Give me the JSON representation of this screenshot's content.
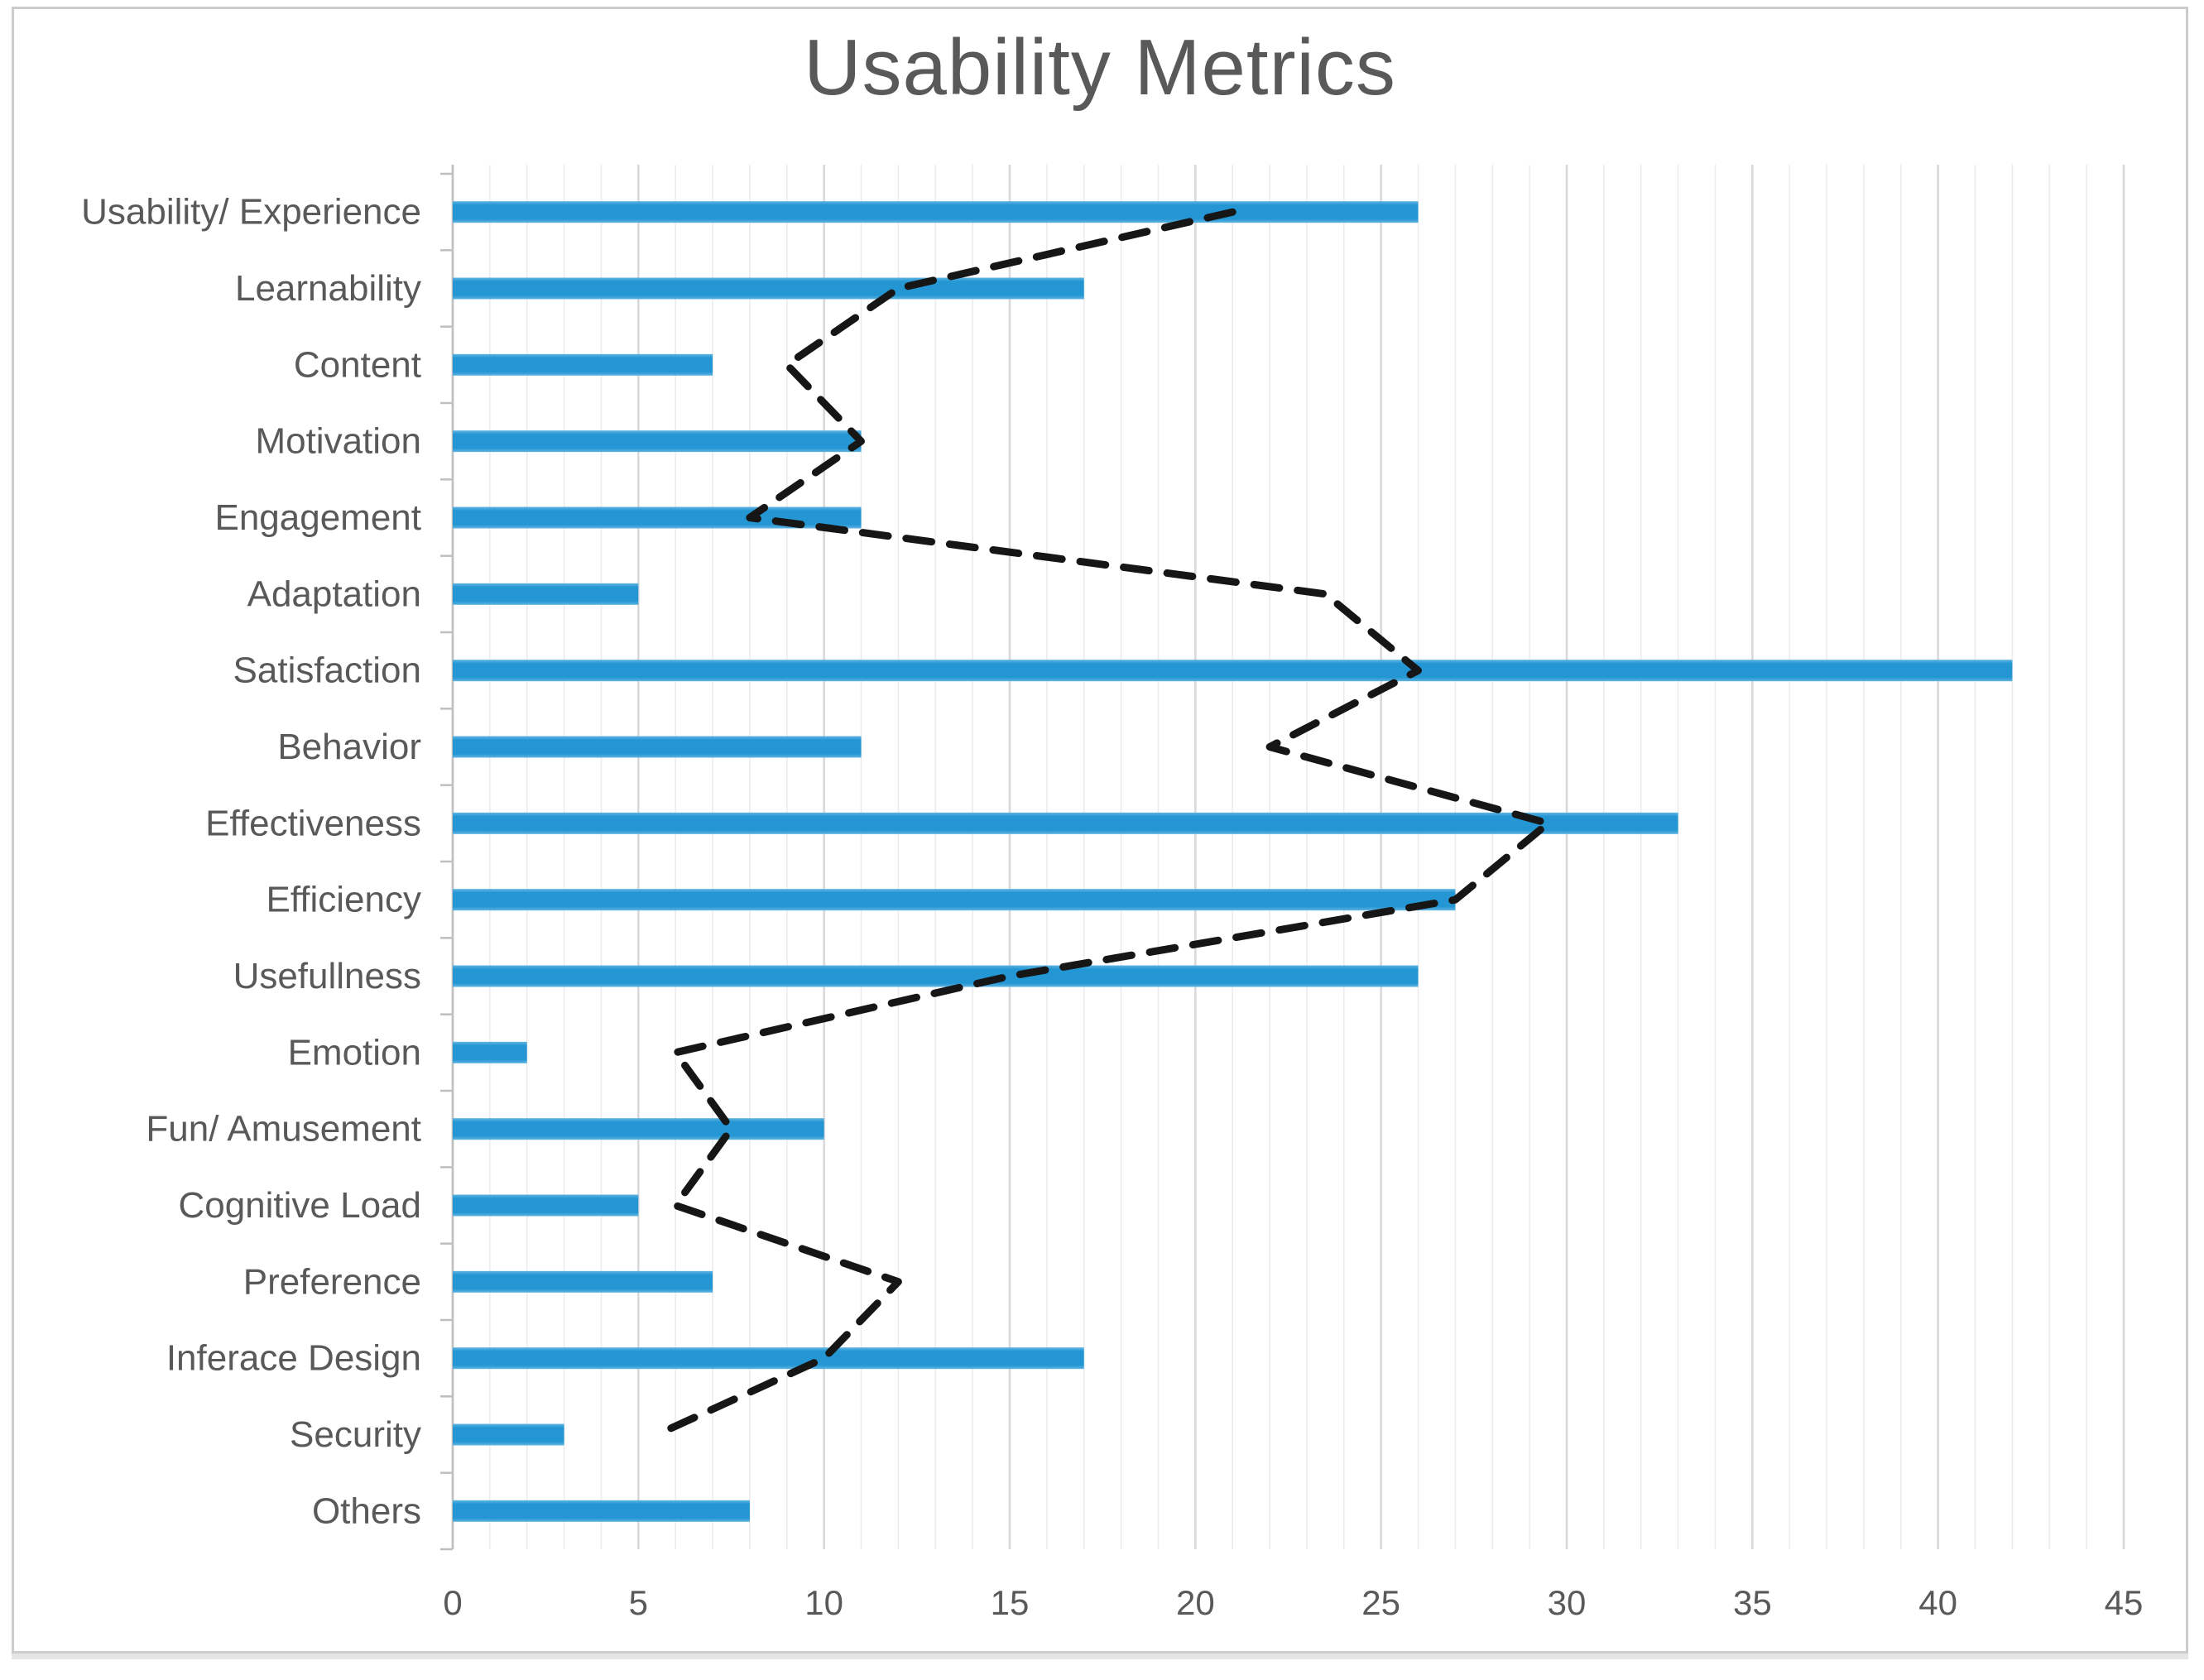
{
  "figure": {
    "title": "Usability Metrics"
  },
  "chart_data": {
    "type": "bar",
    "orientation": "horizontal",
    "title": "Usability Metrics",
    "xlabel": "",
    "ylabel": "",
    "xlim": [
      0,
      45
    ],
    "xticks": [
      0,
      5,
      10,
      15,
      20,
      25,
      30,
      35,
      40,
      45
    ],
    "grid": {
      "minor_step": 1,
      "major_step": 5,
      "visible": true
    },
    "legend_position": "none",
    "categories": [
      "Usability/ Experience",
      "Learnability",
      "Content",
      "Motivation",
      "Engagement",
      "Adaptation",
      "Satisfaction",
      "Behavior",
      "Effectiveness",
      "Efficiency",
      "Usefullness",
      "Emotion",
      "Fun/ Amusement",
      "Cognitive Load",
      "Preference",
      "Inferace Design",
      "Security",
      "Others"
    ],
    "series": [
      {
        "name": "bar-series",
        "type": "bar",
        "values": [
          26,
          17,
          7,
          11,
          11,
          5,
          42,
          11,
          33,
          27,
          26,
          2,
          10,
          5,
          7,
          17,
          3,
          8
        ]
      },
      {
        "name": "dashed-line-series",
        "type": "line",
        "values": [
          21,
          12,
          9,
          11,
          8,
          23.5,
          26,
          22,
          29.5,
          27,
          15,
          6,
          7.5,
          6,
          12,
          10,
          5.5,
          null
        ]
      }
    ],
    "colors": {
      "bar": "#2496d3",
      "bar_light": "#5fb4e2",
      "line": "#161616",
      "text": "#595959",
      "grid_minor": "#ebebeb",
      "grid_major": "#d8d8d8",
      "axis": "#bfbfbf"
    }
  }
}
